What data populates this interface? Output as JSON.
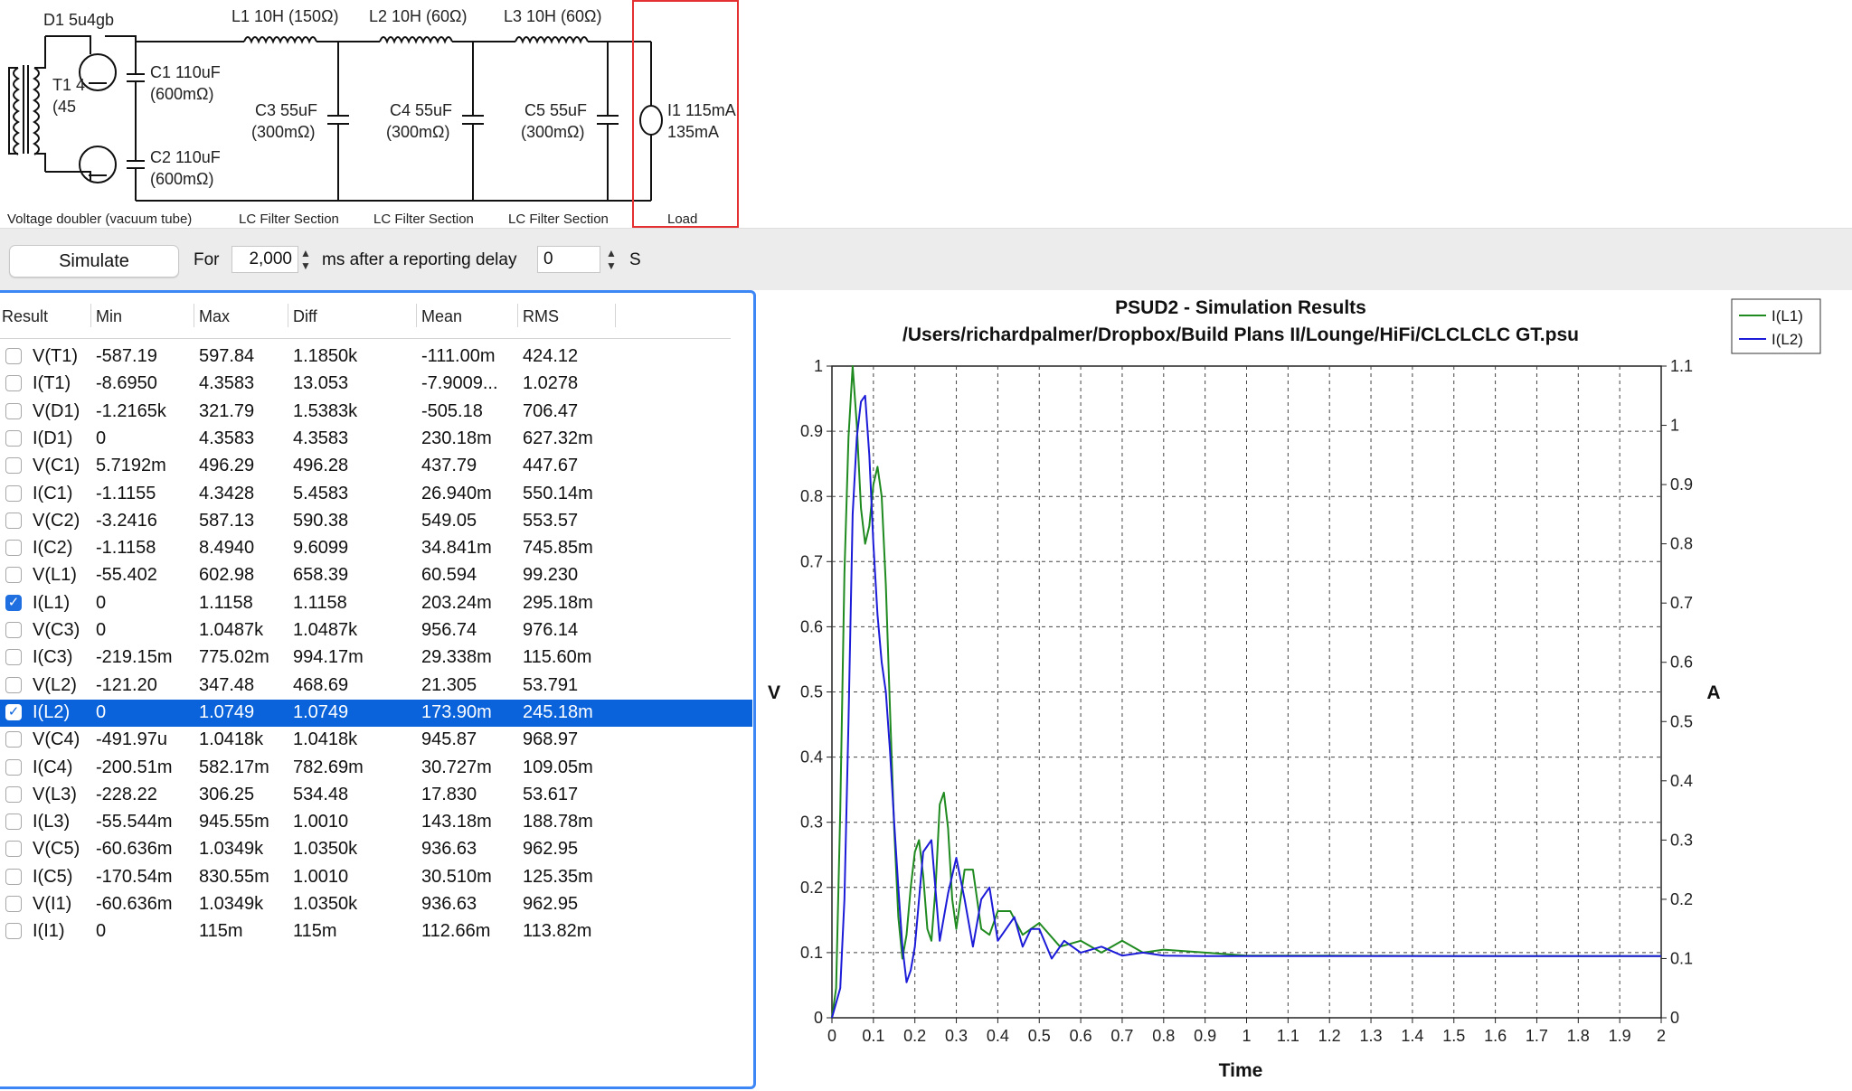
{
  "schematic": {
    "d1": "D1 5u4gb",
    "l1": "L1 10H (150Ω)",
    "l2": "L2 10H (60Ω)",
    "l3": "L3 10H (60Ω)",
    "t1_a": "T1 4",
    "t1_b": "(45",
    "c1_a": "C1 110uF",
    "c1_b": "(600mΩ)",
    "c2_a": "C2 110uF",
    "c2_b": "(600mΩ)",
    "c3_a": "C3 55uF",
    "c3_b": "(300mΩ)",
    "c4_a": "C4 55uF",
    "c4_b": "(300mΩ)",
    "c5_a": "C5 55uF",
    "c5_b": "(300mΩ)",
    "i1_a": "I1 115mA",
    "i1_b": "135mA",
    "sec_doubler": "Voltage doubler (vacuum tube)",
    "sec_lc1": "LC Filter Section",
    "sec_lc2": "LC Filter Section",
    "sec_lc3": "LC Filter Section",
    "sec_load": "Load"
  },
  "toolbar": {
    "simulate": "Simulate",
    "for_label": "For",
    "duration": "2,000",
    "ms_label": "ms after a reporting delay",
    "delay": "0",
    "s_label": "S"
  },
  "table": {
    "headers": [
      "Result",
      "Min",
      "Max",
      "Diff",
      "Mean",
      "RMS"
    ],
    "rows": [
      {
        "name": "V(T1)",
        "min": "-587.19",
        "max": "597.84",
        "diff": "1.1850k",
        "mean": "-111.00m",
        "rms": "424.12",
        "checked": false
      },
      {
        "name": "I(T1)",
        "min": "-8.6950",
        "max": "4.3583",
        "diff": "13.053",
        "mean": "-7.9009...",
        "rms": "1.0278",
        "checked": false
      },
      {
        "name": "V(D1)",
        "min": "-1.2165k",
        "max": "321.79",
        "diff": "1.5383k",
        "mean": "-505.18",
        "rms": "706.47",
        "checked": false
      },
      {
        "name": "I(D1)",
        "min": "0",
        "max": "4.3583",
        "diff": "4.3583",
        "mean": "230.18m",
        "rms": "627.32m",
        "checked": false
      },
      {
        "name": "V(C1)",
        "min": "5.7192m",
        "max": "496.29",
        "diff": "496.28",
        "mean": "437.79",
        "rms": "447.67",
        "checked": false
      },
      {
        "name": "I(C1)",
        "min": "-1.1155",
        "max": "4.3428",
        "diff": "5.4583",
        "mean": "26.940m",
        "rms": "550.14m",
        "checked": false
      },
      {
        "name": "V(C2)",
        "min": "-3.2416",
        "max": "587.13",
        "diff": "590.38",
        "mean": "549.05",
        "rms": "553.57",
        "checked": false
      },
      {
        "name": "I(C2)",
        "min": "-1.1158",
        "max": "8.4940",
        "diff": "9.6099",
        "mean": "34.841m",
        "rms": "745.85m",
        "checked": false
      },
      {
        "name": "V(L1)",
        "min": "-55.402",
        "max": "602.98",
        "diff": "658.39",
        "mean": "60.594",
        "rms": "99.230",
        "checked": false
      },
      {
        "name": "I(L1)",
        "min": "0",
        "max": "1.1158",
        "diff": "1.1158",
        "mean": "203.24m",
        "rms": "295.18m",
        "checked": true
      },
      {
        "name": "V(C3)",
        "min": "0",
        "max": "1.0487k",
        "diff": "1.0487k",
        "mean": "956.74",
        "rms": "976.14",
        "checked": false
      },
      {
        "name": "I(C3)",
        "min": "-219.15m",
        "max": "775.02m",
        "diff": "994.17m",
        "mean": "29.338m",
        "rms": "115.60m",
        "checked": false
      },
      {
        "name": "V(L2)",
        "min": "-121.20",
        "max": "347.48",
        "diff": "468.69",
        "mean": "21.305",
        "rms": "53.791",
        "checked": false
      },
      {
        "name": "I(L2)",
        "min": "0",
        "max": "1.0749",
        "diff": "1.0749",
        "mean": "173.90m",
        "rms": "245.18m",
        "checked": true,
        "selected": true
      },
      {
        "name": "V(C4)",
        "min": "-491.97u",
        "max": "1.0418k",
        "diff": "1.0418k",
        "mean": "945.87",
        "rms": "968.97",
        "checked": false
      },
      {
        "name": "I(C4)",
        "min": "-200.51m",
        "max": "582.17m",
        "diff": "782.69m",
        "mean": "30.727m",
        "rms": "109.05m",
        "checked": false
      },
      {
        "name": "V(L3)",
        "min": "-228.22",
        "max": "306.25",
        "diff": "534.48",
        "mean": "17.830",
        "rms": "53.617",
        "checked": false
      },
      {
        "name": "I(L3)",
        "min": "-55.544m",
        "max": "945.55m",
        "diff": "1.0010",
        "mean": "143.18m",
        "rms": "188.78m",
        "checked": false
      },
      {
        "name": "V(C5)",
        "min": "-60.636m",
        "max": "1.0349k",
        "diff": "1.0350k",
        "mean": "936.63",
        "rms": "962.95",
        "checked": false
      },
      {
        "name": "I(C5)",
        "min": "-170.54m",
        "max": "830.55m",
        "diff": "1.0010",
        "mean": "30.510m",
        "rms": "125.35m",
        "checked": false
      },
      {
        "name": "V(I1)",
        "min": "-60.636m",
        "max": "1.0349k",
        "diff": "1.0350k",
        "mean": "936.63",
        "rms": "962.95",
        "checked": false
      },
      {
        "name": "I(I1)",
        "min": "0",
        "max": "115m",
        "diff": "115m",
        "mean": "112.66m",
        "rms": "113.82m",
        "checked": false
      }
    ]
  },
  "chart_data": {
    "type": "line",
    "title": "PSUD2 - Simulation Results",
    "subtitle": "/Users/richardpalmer/Dropbox/Build Plans II/Lounge/HiFi/CLCLCLC GT.psu",
    "xlabel": "Time",
    "ylabel": "V",
    "y2label": "A",
    "xlim": [
      0,
      2
    ],
    "ylim": [
      0,
      1
    ],
    "y2lim": [
      0,
      1.1
    ],
    "xticks": [
      "0",
      "0.1",
      "0.2",
      "0.3",
      "0.4",
      "0.5",
      "0.6",
      "0.7",
      "0.8",
      "0.9",
      "1",
      "1.1",
      "1.2",
      "1.3",
      "1.4",
      "1.5",
      "1.6",
      "1.7",
      "1.8",
      "1.9",
      "2"
    ],
    "yticks": [
      "0",
      "0.1",
      "0.2",
      "0.3",
      "0.4",
      "0.5",
      "0.6",
      "0.7",
      "0.8",
      "0.9",
      "1"
    ],
    "y2ticks": [
      "0",
      "0.1",
      "0.2",
      "0.3",
      "0.4",
      "0.5",
      "0.6",
      "0.7",
      "0.8",
      "0.9",
      "1",
      "1.1"
    ],
    "grid": true,
    "legend_position": "top-right",
    "series": [
      {
        "name": "I(L1)",
        "color": "#1f8a1f",
        "x": [
          0,
          0.01,
          0.02,
          0.03,
          0.04,
          0.05,
          0.06,
          0.07,
          0.08,
          0.09,
          0.1,
          0.11,
          0.12,
          0.13,
          0.14,
          0.15,
          0.16,
          0.17,
          0.18,
          0.19,
          0.2,
          0.21,
          0.22,
          0.23,
          0.24,
          0.25,
          0.26,
          0.27,
          0.28,
          0.29,
          0.3,
          0.32,
          0.34,
          0.36,
          0.38,
          0.4,
          0.43,
          0.46,
          0.5,
          0.55,
          0.6,
          0.65,
          0.7,
          0.75,
          0.8,
          0.9,
          1.0,
          1.2,
          1.5,
          2.0
        ],
        "y": [
          0,
          0.05,
          0.35,
          0.75,
          0.98,
          1.1,
          1.0,
          0.86,
          0.8,
          0.83,
          0.9,
          0.93,
          0.88,
          0.73,
          0.52,
          0.32,
          0.17,
          0.1,
          0.14,
          0.22,
          0.28,
          0.3,
          0.24,
          0.15,
          0.13,
          0.22,
          0.36,
          0.38,
          0.32,
          0.2,
          0.15,
          0.25,
          0.25,
          0.15,
          0.14,
          0.18,
          0.18,
          0.14,
          0.16,
          0.12,
          0.13,
          0.11,
          0.13,
          0.11,
          0.115,
          0.11,
          0.105,
          0.105,
          0.104,
          0.104
        ]
      },
      {
        "name": "I(L2)",
        "color": "#1c1cd8",
        "x": [
          0,
          0.02,
          0.03,
          0.04,
          0.05,
          0.06,
          0.07,
          0.08,
          0.09,
          0.1,
          0.11,
          0.12,
          0.13,
          0.14,
          0.15,
          0.16,
          0.17,
          0.18,
          0.19,
          0.2,
          0.22,
          0.24,
          0.26,
          0.28,
          0.3,
          0.32,
          0.34,
          0.36,
          0.38,
          0.4,
          0.42,
          0.44,
          0.46,
          0.48,
          0.5,
          0.53,
          0.56,
          0.6,
          0.65,
          0.7,
          0.75,
          0.8,
          0.9,
          1.0,
          1.2,
          1.5,
          2.0
        ],
        "y": [
          0,
          0.05,
          0.2,
          0.5,
          0.85,
          0.98,
          1.04,
          1.05,
          0.95,
          0.8,
          0.68,
          0.6,
          0.55,
          0.45,
          0.33,
          0.22,
          0.12,
          0.06,
          0.08,
          0.12,
          0.28,
          0.3,
          0.13,
          0.21,
          0.27,
          0.2,
          0.12,
          0.2,
          0.22,
          0.13,
          0.15,
          0.17,
          0.12,
          0.15,
          0.15,
          0.1,
          0.13,
          0.11,
          0.12,
          0.105,
          0.11,
          0.105,
          0.104,
          0.104,
          0.104,
          0.104,
          0.104
        ]
      }
    ]
  }
}
